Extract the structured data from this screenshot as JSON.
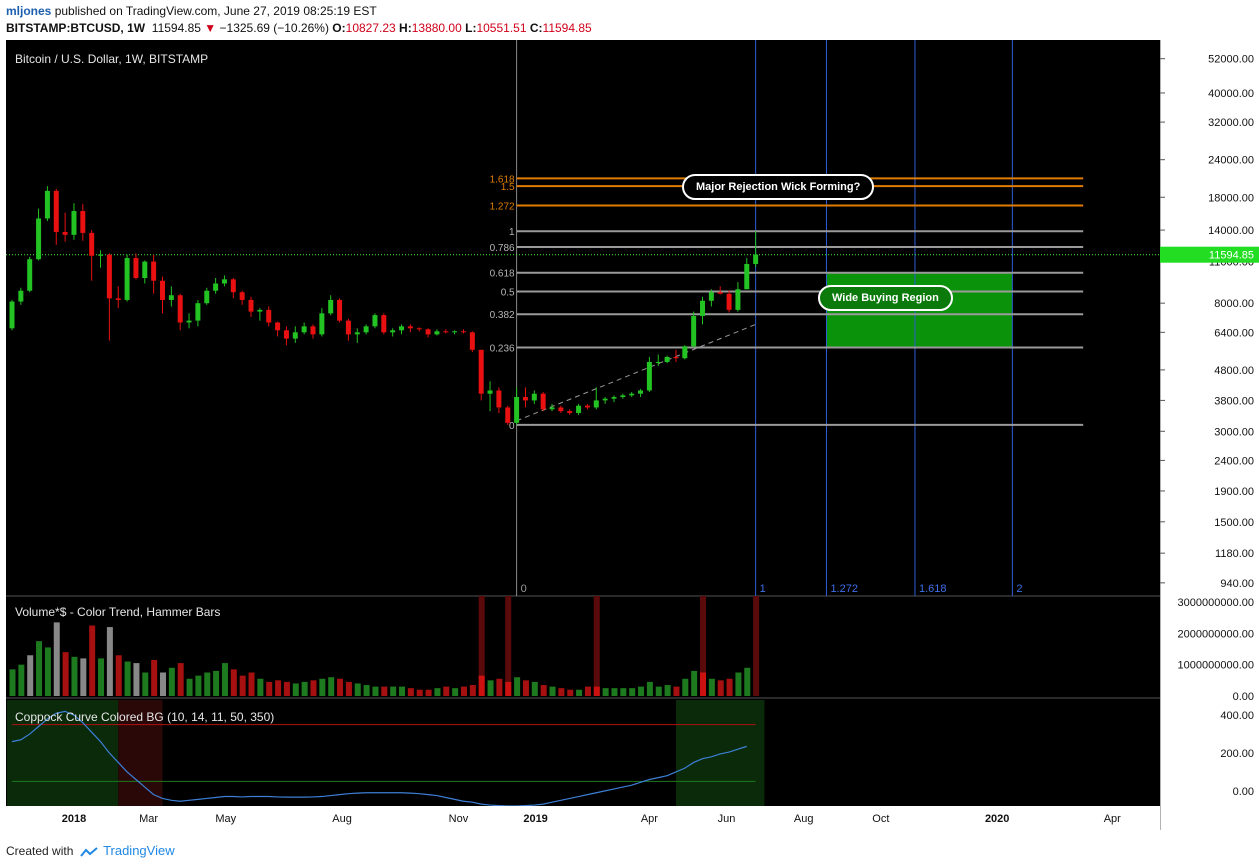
{
  "header": {
    "user": "mljones",
    "published": " published on TradingView.com, June 27, 2019 08:25:19 EST",
    "symbol": "BITSTAMP:BTCUSD, 1W",
    "last": "11594.85",
    "change_arrow": "▼",
    "change": "−1325.69 (−10.26%)",
    "o_label": "O:",
    "o": "10827.23",
    "h_label": "H:",
    "h": "13880.00",
    "l_label": "L:",
    "l": "10551.51",
    "c_label": "C:",
    "c": "11594.85"
  },
  "panes": {
    "price_title": "Bitcoin / U.S. Dollar, 1W, BITSTAMP",
    "volume_title": "Volume*$ - Color Trend, Hammer Bars",
    "coppock_title": "Coppock Curve Colored BG (10, 14, 11, 50, 350)"
  },
  "annotations": {
    "rejection": "Major Rejection Wick Forming?",
    "buying": "Wide Buying Region"
  },
  "footer": {
    "created_with": "Created with",
    "brand": "TradingView"
  },
  "colors": {
    "up": "#22c322",
    "down": "#e81010",
    "fib_ext": "#e07c00",
    "fib": "#9a9a9a",
    "time": "#2f5ed6",
    "price_line": "#3ef03e",
    "zone": "#0ba20b"
  },
  "chart_data": {
    "type": "candlestick",
    "interval": "1W",
    "scale": "log",
    "ylim": [
      850,
      60000
    ],
    "xlim": [
      "2017-11-13",
      "2020-05-04"
    ],
    "y_ticks": [
      "52000.00",
      "40000.00",
      "32000.00",
      "24000.00",
      "18000.00",
      "14000.00",
      "11000.00",
      "8000.00",
      "6400.00",
      "4800.00",
      "3800.00",
      "3000.00",
      "2400.00",
      "1900.00",
      "1500.00",
      "1180.00",
      "940.00"
    ],
    "last_price": "11594.85",
    "x_ticks": [
      {
        "label": "2018",
        "date": "2018-01-01"
      },
      {
        "label": "Mar",
        "date": "2018-03-01"
      },
      {
        "label": "May",
        "date": "2018-05-01"
      },
      {
        "label": "Aug",
        "date": "2018-08-01"
      },
      {
        "label": "Nov",
        "date": "2018-11-01"
      },
      {
        "label": "2019",
        "date": "2019-01-01"
      },
      {
        "label": "Apr",
        "date": "2019-04-01"
      },
      {
        "label": "Jun",
        "date": "2019-06-01"
      },
      {
        "label": "Aug",
        "date": "2019-08-01"
      },
      {
        "label": "Oct",
        "date": "2019-10-01"
      },
      {
        "label": "2020",
        "date": "2020-01-01"
      },
      {
        "label": "Apr",
        "date": "2020-04-01"
      }
    ],
    "candles": [
      {
        "t": "2017-11-13",
        "o": 6600,
        "h": 8200,
        "l": 6500,
        "c": 8100
      },
      {
        "t": "2017-11-20",
        "o": 8100,
        "h": 9000,
        "l": 7900,
        "c": 8800
      },
      {
        "t": "2017-11-27",
        "o": 8800,
        "h": 11400,
        "l": 8700,
        "c": 11200
      },
      {
        "t": "2017-12-04",
        "o": 11200,
        "h": 16500,
        "l": 11100,
        "c": 15300
      },
      {
        "t": "2017-12-11",
        "o": 15300,
        "h": 19600,
        "l": 15000,
        "c": 18900
      },
      {
        "t": "2017-12-18",
        "o": 18900,
        "h": 19200,
        "l": 12500,
        "c": 13800
      },
      {
        "t": "2017-12-25",
        "o": 13800,
        "h": 16000,
        "l": 12800,
        "c": 13500
      },
      {
        "t": "2018-01-01",
        "o": 13500,
        "h": 17200,
        "l": 13000,
        "c": 16200
      },
      {
        "t": "2018-01-08",
        "o": 16200,
        "h": 17100,
        "l": 12900,
        "c": 13700
      },
      {
        "t": "2018-01-15",
        "o": 13700,
        "h": 14000,
        "l": 9500,
        "c": 11500
      },
      {
        "t": "2018-01-22",
        "o": 11500,
        "h": 12000,
        "l": 10500,
        "c": 11600
      },
      {
        "t": "2018-01-29",
        "o": 11600,
        "h": 11700,
        "l": 6000,
        "c": 8300
      },
      {
        "t": "2018-02-05",
        "o": 8300,
        "h": 9100,
        "l": 7700,
        "c": 8200
      },
      {
        "t": "2018-02-12",
        "o": 8200,
        "h": 11600,
        "l": 8100,
        "c": 11300
      },
      {
        "t": "2018-02-19",
        "o": 11300,
        "h": 11700,
        "l": 9600,
        "c": 9700
      },
      {
        "t": "2018-02-26",
        "o": 9700,
        "h": 11100,
        "l": 9300,
        "c": 11000
      },
      {
        "t": "2018-03-05",
        "o": 11000,
        "h": 11600,
        "l": 8600,
        "c": 9500
      },
      {
        "t": "2018-03-12",
        "o": 9500,
        "h": 9800,
        "l": 7400,
        "c": 8200
      },
      {
        "t": "2018-03-19",
        "o": 8200,
        "h": 9100,
        "l": 7800,
        "c": 8500
      },
      {
        "t": "2018-03-26",
        "o": 8500,
        "h": 8600,
        "l": 6500,
        "c": 6900
      },
      {
        "t": "2018-04-02",
        "o": 6900,
        "h": 7400,
        "l": 6600,
        "c": 7000
      },
      {
        "t": "2018-04-09",
        "o": 7000,
        "h": 8200,
        "l": 6700,
        "c": 8000
      },
      {
        "t": "2018-04-16",
        "o": 8000,
        "h": 9000,
        "l": 7900,
        "c": 8800
      },
      {
        "t": "2018-04-23",
        "o": 8800,
        "h": 9700,
        "l": 8600,
        "c": 9300
      },
      {
        "t": "2018-04-30",
        "o": 9300,
        "h": 9900,
        "l": 9100,
        "c": 9600
      },
      {
        "t": "2018-05-07",
        "o": 9600,
        "h": 9700,
        "l": 8300,
        "c": 8700
      },
      {
        "t": "2018-05-14",
        "o": 8700,
        "h": 8800,
        "l": 7900,
        "c": 8200
      },
      {
        "t": "2018-05-21",
        "o": 8200,
        "h": 8400,
        "l": 7200,
        "c": 7500
      },
      {
        "t": "2018-05-28",
        "o": 7500,
        "h": 7700,
        "l": 7000,
        "c": 7600
      },
      {
        "t": "2018-06-04",
        "o": 7600,
        "h": 7800,
        "l": 6700,
        "c": 6900
      },
      {
        "t": "2018-06-11",
        "o": 6900,
        "h": 6950,
        "l": 6200,
        "c": 6500
      },
      {
        "t": "2018-06-18",
        "o": 6500,
        "h": 6700,
        "l": 5800,
        "c": 6100
      },
      {
        "t": "2018-06-25",
        "o": 6100,
        "h": 6700,
        "l": 5900,
        "c": 6400
      },
      {
        "t": "2018-07-02",
        "o": 6400,
        "h": 6900,
        "l": 6300,
        "c": 6700
      },
      {
        "t": "2018-07-09",
        "o": 6700,
        "h": 6800,
        "l": 6100,
        "c": 6300
      },
      {
        "t": "2018-07-16",
        "o": 6300,
        "h": 7700,
        "l": 6200,
        "c": 7400
      },
      {
        "t": "2018-07-23",
        "o": 7400,
        "h": 8500,
        "l": 7300,
        "c": 8200
      },
      {
        "t": "2018-07-30",
        "o": 8200,
        "h": 8300,
        "l": 6900,
        "c": 7000
      },
      {
        "t": "2018-08-06",
        "o": 7000,
        "h": 7100,
        "l": 6000,
        "c": 6300
      },
      {
        "t": "2018-08-13",
        "o": 6300,
        "h": 6600,
        "l": 5900,
        "c": 6400
      },
      {
        "t": "2018-08-20",
        "o": 6400,
        "h": 6800,
        "l": 6300,
        "c": 6700
      },
      {
        "t": "2018-08-27",
        "o": 6700,
        "h": 7400,
        "l": 6600,
        "c": 7300
      },
      {
        "t": "2018-09-03",
        "o": 7300,
        "h": 7400,
        "l": 6300,
        "c": 6400
      },
      {
        "t": "2018-09-10",
        "o": 6400,
        "h": 6600,
        "l": 6200,
        "c": 6500
      },
      {
        "t": "2018-09-17",
        "o": 6500,
        "h": 6800,
        "l": 6300,
        "c": 6700
      },
      {
        "t": "2018-09-24",
        "o": 6700,
        "h": 6800,
        "l": 6400,
        "c": 6600
      },
      {
        "t": "2018-10-01",
        "o": 6600,
        "h": 6650,
        "l": 6450,
        "c": 6550
      },
      {
        "t": "2018-10-08",
        "o": 6550,
        "h": 6600,
        "l": 6150,
        "c": 6300
      },
      {
        "t": "2018-10-15",
        "o": 6300,
        "h": 6550,
        "l": 6250,
        "c": 6450
      },
      {
        "t": "2018-10-22",
        "o": 6450,
        "h": 6550,
        "l": 6350,
        "c": 6400
      },
      {
        "t": "2018-10-29",
        "o": 6400,
        "h": 6500,
        "l": 6300,
        "c": 6450
      },
      {
        "t": "2018-11-05",
        "o": 6450,
        "h": 6550,
        "l": 6350,
        "c": 6400
      },
      {
        "t": "2018-11-12",
        "o": 6400,
        "h": 6450,
        "l": 5500,
        "c": 5600
      },
      {
        "t": "2018-11-19",
        "o": 5600,
        "h": 5600,
        "l": 3800,
        "c": 4000
      },
      {
        "t": "2018-11-26",
        "o": 4000,
        "h": 4400,
        "l": 3500,
        "c": 4100
      },
      {
        "t": "2018-12-03",
        "o": 4100,
        "h": 4200,
        "l": 3450,
        "c": 3600
      },
      {
        "t": "2018-12-10",
        "o": 3600,
        "h": 3650,
        "l": 3150,
        "c": 3200
      },
      {
        "t": "2018-12-17",
        "o": 3200,
        "h": 4200,
        "l": 3150,
        "c": 3900
      },
      {
        "t": "2018-12-24",
        "o": 3900,
        "h": 4200,
        "l": 3600,
        "c": 3800
      },
      {
        "t": "2018-12-31",
        "o": 3800,
        "h": 4100,
        "l": 3700,
        "c": 4000
      },
      {
        "t": "2019-01-07",
        "o": 4000,
        "h": 4050,
        "l": 3500,
        "c": 3550
      },
      {
        "t": "2019-01-14",
        "o": 3550,
        "h": 3700,
        "l": 3500,
        "c": 3600
      },
      {
        "t": "2019-01-21",
        "o": 3600,
        "h": 3650,
        "l": 3450,
        "c": 3500
      },
      {
        "t": "2019-01-28",
        "o": 3500,
        "h": 3550,
        "l": 3400,
        "c": 3450
      },
      {
        "t": "2019-02-04",
        "o": 3450,
        "h": 3700,
        "l": 3400,
        "c": 3650
      },
      {
        "t": "2019-02-11",
        "o": 3650,
        "h": 3700,
        "l": 3550,
        "c": 3600
      },
      {
        "t": "2019-02-18",
        "o": 3600,
        "h": 4200,
        "l": 3550,
        "c": 3800
      },
      {
        "t": "2019-02-25",
        "o": 3800,
        "h": 3900,
        "l": 3700,
        "c": 3850
      },
      {
        "t": "2019-03-04",
        "o": 3850,
        "h": 3950,
        "l": 3750,
        "c": 3900
      },
      {
        "t": "2019-03-11",
        "o": 3900,
        "h": 4000,
        "l": 3850,
        "c": 3950
      },
      {
        "t": "2019-03-18",
        "o": 3950,
        "h": 4050,
        "l": 3900,
        "c": 4000
      },
      {
        "t": "2019-03-25",
        "o": 4000,
        "h": 4150,
        "l": 3900,
        "c": 4100
      },
      {
        "t": "2019-04-01",
        "o": 4100,
        "h": 5300,
        "l": 4050,
        "c": 5100
      },
      {
        "t": "2019-04-08",
        "o": 5100,
        "h": 5400,
        "l": 4950,
        "c": 5100
      },
      {
        "t": "2019-04-15",
        "o": 5100,
        "h": 5350,
        "l": 5050,
        "c": 5300
      },
      {
        "t": "2019-04-22",
        "o": 5300,
        "h": 5600,
        "l": 5100,
        "c": 5250
      },
      {
        "t": "2019-04-29",
        "o": 5250,
        "h": 5800,
        "l": 5200,
        "c": 5750
      },
      {
        "t": "2019-05-06",
        "o": 5750,
        "h": 7500,
        "l": 5700,
        "c": 7250
      },
      {
        "t": "2019-05-13",
        "o": 7250,
        "h": 8400,
        "l": 6800,
        "c": 8150
      },
      {
        "t": "2019-05-20",
        "o": 8150,
        "h": 8900,
        "l": 7800,
        "c": 8700
      },
      {
        "t": "2019-05-27",
        "o": 8700,
        "h": 9100,
        "l": 8550,
        "c": 8600
      },
      {
        "t": "2019-06-03",
        "o": 8600,
        "h": 8800,
        "l": 7450,
        "c": 7600
      },
      {
        "t": "2019-06-10",
        "o": 7600,
        "h": 9400,
        "l": 7500,
        "c": 8900
      },
      {
        "t": "2019-06-17",
        "o": 8900,
        "h": 11300,
        "l": 8900,
        "c": 10800
      },
      {
        "t": "2019-06-24",
        "o": 10800,
        "h": 13880,
        "l": 10550,
        "c": 11600
      }
    ],
    "fib_retracement": {
      "levels": [
        {
          "label": "0",
          "price": 3150
        },
        {
          "label": "0.236",
          "price": 5700
        },
        {
          "label": "0.382",
          "price": 7350
        },
        {
          "label": "0.5",
          "price": 8750
        },
        {
          "label": "0.618",
          "price": 10100
        },
        {
          "label": "0.786",
          "price": 12300
        },
        {
          "label": "1",
          "price": 13880
        }
      ],
      "extensions": [
        {
          "label": "1.272",
          "price": 16900
        },
        {
          "label": "1.5",
          "price": 19600
        },
        {
          "label": "1.618",
          "price": 20800
        }
      ]
    },
    "fib_time": [
      {
        "label": "0",
        "date": "2018-12-17"
      },
      {
        "label": "1",
        "date": "2019-06-24"
      },
      {
        "label": "1.272",
        "date": "2019-08-19"
      },
      {
        "label": "1.618",
        "date": "2019-10-28"
      },
      {
        "label": "2",
        "date": "2020-01-13"
      }
    ],
    "buying_zone": {
      "from": "2019-08-19",
      "to": "2020-01-13",
      "price_low": 5700,
      "price_high": 10100
    },
    "trendline": [
      {
        "t": "2018-12-17",
        "p": 3250
      },
      {
        "t": "2019-06-24",
        "p": 6800
      }
    ],
    "volume": {
      "y_ticks": [
        "3000000000.00",
        "2000000000.00",
        "1000000000.00",
        "0.00"
      ],
      "ylim": [
        0,
        3000000000
      ],
      "values": [
        0.85,
        1.0,
        1.3,
        1.75,
        1.55,
        2.35,
        1.4,
        1.25,
        1.2,
        2.25,
        1.2,
        2.2,
        1.3,
        1.1,
        1.05,
        0.75,
        1.15,
        0.75,
        0.9,
        1.05,
        0.55,
        0.65,
        0.75,
        0.8,
        1.05,
        0.85,
        0.65,
        0.75,
        0.55,
        0.45,
        0.5,
        0.45,
        0.4,
        0.45,
        0.5,
        0.55,
        0.6,
        0.55,
        0.45,
        0.4,
        0.35,
        0.3,
        0.3,
        0.3,
        0.3,
        0.25,
        0.2,
        0.2,
        0.25,
        0.3,
        0.25,
        0.3,
        0.35,
        0.65,
        0.5,
        0.55,
        0.45,
        0.6,
        0.5,
        0.45,
        0.35,
        0.3,
        0.25,
        0.2,
        0.2,
        0.3,
        0.3,
        0.25,
        0.25,
        0.25,
        0.25,
        0.3,
        0.45,
        0.3,
        0.35,
        0.3,
        0.55,
        0.8,
        0.75,
        0.55,
        0.5,
        0.55,
        0.75,
        0.9
      ],
      "hammer_weeks": [
        "2018-11-19",
        "2018-12-10",
        "2019-02-18",
        "2019-05-13",
        "2019-06-24"
      ]
    },
    "coppock": {
      "y_ticks": [
        "400.00",
        "200.00",
        "0.00"
      ],
      "ylim": [
        -80,
        480
      ],
      "upper_line": 350,
      "lower_line": 50,
      "values": [
        260,
        270,
        300,
        340,
        380,
        410,
        420,
        400,
        360,
        310,
        260,
        200,
        150,
        100,
        60,
        20,
        -20,
        -40,
        -50,
        -55,
        -50,
        -45,
        -40,
        -35,
        -30,
        -30,
        -32,
        -30,
        -30,
        -30,
        -32,
        -33,
        -33,
        -33,
        -32,
        -30,
        -25,
        -20,
        -15,
        -12,
        -10,
        -10,
        -10,
        -10,
        -10,
        -12,
        -15,
        -20,
        -25,
        -35,
        -45,
        -55,
        -60,
        -70,
        -75,
        -78,
        -80,
        -80,
        -78,
        -75,
        -70,
        -60,
        -50,
        -40,
        -30,
        -20,
        -10,
        0,
        10,
        20,
        30,
        45,
        60,
        70,
        80,
        100,
        120,
        150,
        170,
        180,
        195,
        205,
        220,
        235
      ]
    }
  }
}
